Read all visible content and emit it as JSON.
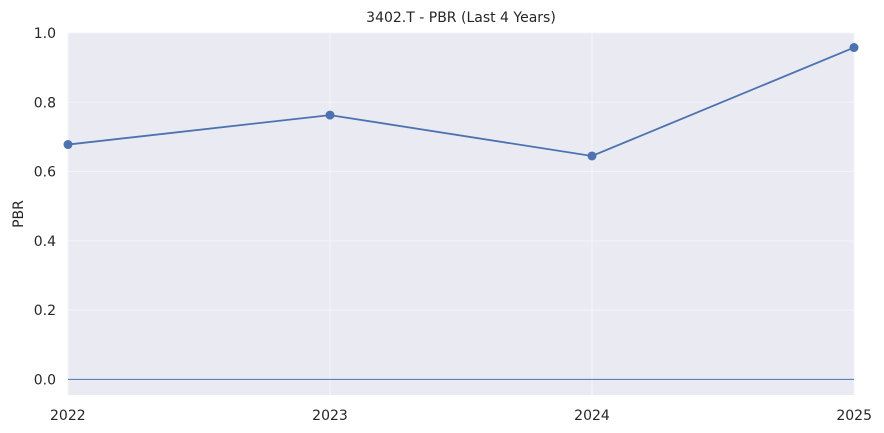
{
  "chart_data": {
    "type": "line",
    "title": "3402.T - PBR (Last 4 Years)",
    "xlabel": "",
    "ylabel": "PBR",
    "x": [
      "2022",
      "2023",
      "2024",
      "2025"
    ],
    "series": [
      {
        "values": [
          0.678,
          0.763,
          0.645,
          0.958
        ]
      }
    ],
    "xticks": [
      "2022",
      "2023",
      "2024",
      "2025"
    ],
    "yticks": [
      "0.0",
      "0.2",
      "0.4",
      "0.6",
      "0.8",
      "1.0"
    ],
    "ylim": [
      -0.045,
      1.0
    ],
    "reference_line": 0.0,
    "grid": true,
    "colors": {
      "background": "#e9eaf2",
      "grid": "#f5f5f8",
      "line": "#4c72b0"
    }
  }
}
